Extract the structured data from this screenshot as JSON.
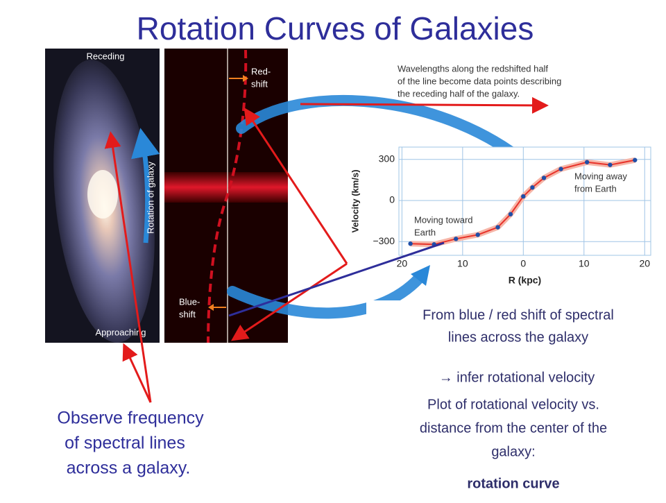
{
  "title": "Rotation Curves of Galaxies",
  "galaxy_image": {
    "receding": "Receding",
    "approaching": "Approaching",
    "rotation_label": "Rotation of galaxy"
  },
  "spectrum": {
    "redshift_label": [
      "Red-",
      "shift"
    ],
    "blueshift_label": [
      "Blue-",
      "shift"
    ]
  },
  "annotation": [
    "Wavelengths along the redshifted half",
    "of the line become data points describing",
    "the receding half of the galaxy."
  ],
  "rotation_plot": {
    "type": "scatter",
    "xlabel": "R (kpc)",
    "ylabel": "Velocity (km/s)",
    "x": [
      -18.6,
      -14.7,
      -11.1,
      -7.5,
      -4.2,
      -2.1,
      0.0,
      1.5,
      3.4,
      6.2,
      10.5,
      14.3,
      18.4
    ],
    "y": [
      -315,
      -320,
      -280,
      -250,
      -195,
      -100,
      30,
      95,
      165,
      230,
      280,
      260,
      295
    ],
    "xlim": [
      -20.5,
      21
    ],
    "ylim": [
      -400,
      390
    ],
    "xticks": [
      {
        "value": -20,
        "label": "20"
      },
      {
        "value": -10,
        "label": "10"
      },
      0,
      10,
      20
    ],
    "yticks": [
      {
        "value": -300,
        "label": "−300"
      },
      0,
      300
    ],
    "grid": true,
    "color": "#1f4fa8",
    "line_color": "#e8322a",
    "annotations": [
      [
        "Moving away",
        "from Earth"
      ],
      [
        "Moving toward",
        "Earth"
      ]
    ]
  },
  "right_text": {
    "lines": [
      "From blue / red shift of spectral",
      "lines across the galaxy"
    ],
    "inference": "→  infer rotational velocity",
    "plot_desc": [
      "Plot of rotational velocity vs.",
      "distance from the center of the",
      "galaxy:"
    ],
    "conclusion": "rotation curve"
  },
  "left_text": [
    "Observe frequency",
    "of spectral lines",
    "across a galaxy."
  ]
}
